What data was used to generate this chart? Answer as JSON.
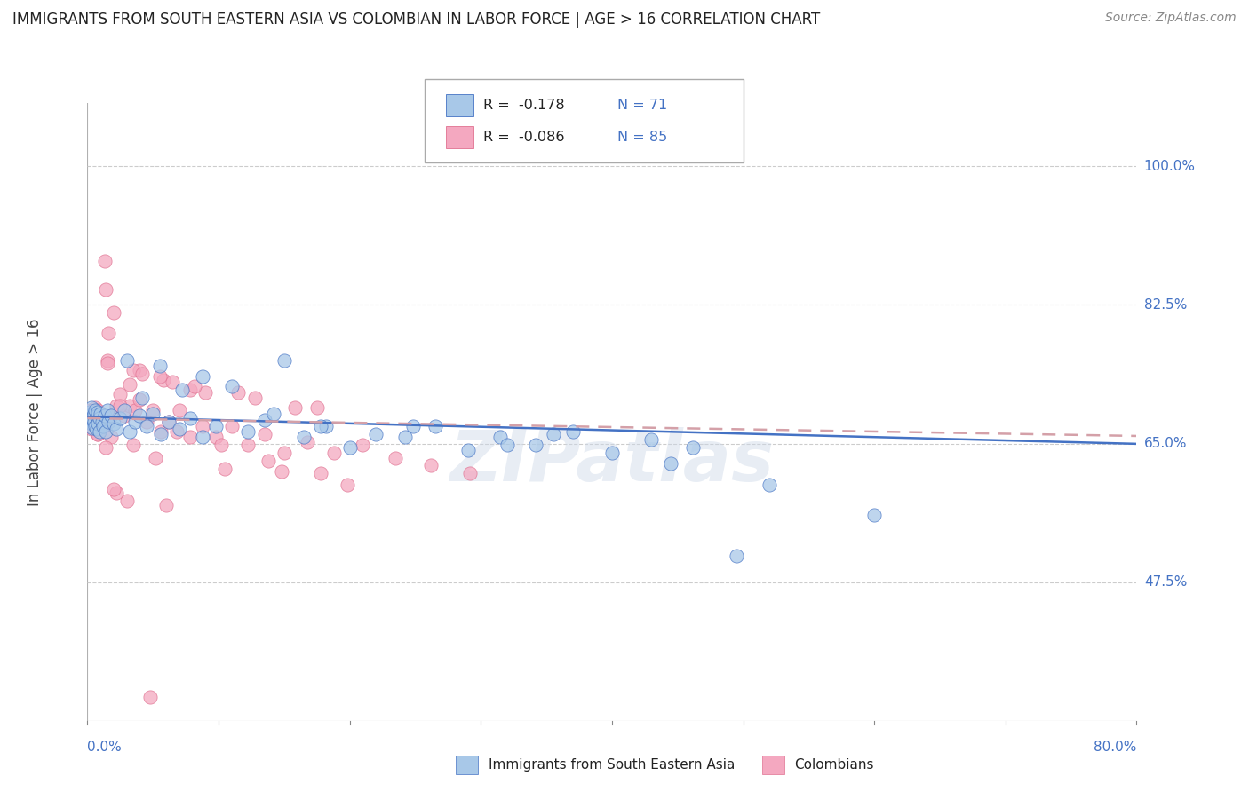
{
  "title": "IMMIGRANTS FROM SOUTH EASTERN ASIA VS COLOMBIAN IN LABOR FORCE | AGE > 16 CORRELATION CHART",
  "source": "Source: ZipAtlas.com",
  "ylabel": "In Labor Force | Age > 16",
  "y_ticks": [
    0.475,
    0.65,
    0.825,
    1.0
  ],
  "y_tick_labels": [
    "47.5%",
    "65.0%",
    "82.5%",
    "100.0%"
  ],
  "x_range": [
    0.0,
    0.8
  ],
  "y_range": [
    0.3,
    1.08
  ],
  "legend_r1": "R =  -0.178",
  "legend_n1": "N = 71",
  "legend_r2": "R =  -0.086",
  "legend_n2": "N = 85",
  "color_blue": "#a8c8e8",
  "color_pink": "#f4a8c0",
  "color_text_blue": "#4472c4",
  "color_text_pink": "#e07090",
  "blue_x": [
    0.001,
    0.002,
    0.002,
    0.003,
    0.003,
    0.004,
    0.004,
    0.005,
    0.005,
    0.006,
    0.006,
    0.007,
    0.007,
    0.008,
    0.008,
    0.009,
    0.009,
    0.01,
    0.011,
    0.012,
    0.013,
    0.014,
    0.015,
    0.016,
    0.018,
    0.02,
    0.022,
    0.025,
    0.028,
    0.032,
    0.036,
    0.04,
    0.045,
    0.05,
    0.056,
    0.062,
    0.07,
    0.078,
    0.088,
    0.098,
    0.11,
    0.122,
    0.135,
    0.15,
    0.165,
    0.182,
    0.2,
    0.22,
    0.242,
    0.265,
    0.29,
    0.315,
    0.342,
    0.37,
    0.4,
    0.43,
    0.462,
    0.495,
    0.32,
    0.178,
    0.088,
    0.055,
    0.042,
    0.03,
    0.6,
    0.445,
    0.52,
    0.355,
    0.248,
    0.142,
    0.072
  ],
  "blue_y": [
    0.68,
    0.685,
    0.69,
    0.675,
    0.695,
    0.682,
    0.67,
    0.688,
    0.678,
    0.692,
    0.672,
    0.685,
    0.668,
    0.69,
    0.675,
    0.682,
    0.665,
    0.688,
    0.678,
    0.672,
    0.685,
    0.665,
    0.692,
    0.678,
    0.685,
    0.675,
    0.668,
    0.682,
    0.692,
    0.665,
    0.678,
    0.685,
    0.672,
    0.688,
    0.662,
    0.678,
    0.668,
    0.682,
    0.658,
    0.672,
    0.722,
    0.665,
    0.68,
    0.755,
    0.658,
    0.672,
    0.645,
    0.662,
    0.658,
    0.672,
    0.642,
    0.658,
    0.648,
    0.665,
    0.638,
    0.655,
    0.645,
    0.508,
    0.648,
    0.672,
    0.735,
    0.748,
    0.708,
    0.755,
    0.56,
    0.625,
    0.598,
    0.662,
    0.672,
    0.688,
    0.718
  ],
  "pink_x": [
    0.001,
    0.001,
    0.002,
    0.002,
    0.003,
    0.003,
    0.004,
    0.004,
    0.005,
    0.005,
    0.006,
    0.006,
    0.007,
    0.007,
    0.008,
    0.008,
    0.009,
    0.01,
    0.011,
    0.012,
    0.013,
    0.014,
    0.015,
    0.016,
    0.018,
    0.02,
    0.022,
    0.025,
    0.028,
    0.032,
    0.036,
    0.04,
    0.045,
    0.05,
    0.056,
    0.062,
    0.07,
    0.078,
    0.088,
    0.098,
    0.11,
    0.122,
    0.135,
    0.15,
    0.168,
    0.188,
    0.21,
    0.235,
    0.262,
    0.292,
    0.03,
    0.052,
    0.035,
    0.018,
    0.008,
    0.014,
    0.022,
    0.06,
    0.105,
    0.148,
    0.198,
    0.058,
    0.078,
    0.04,
    0.025,
    0.012,
    0.09,
    0.035,
    0.065,
    0.115,
    0.158,
    0.042,
    0.015,
    0.175,
    0.128,
    0.082,
    0.055,
    0.032,
    0.008,
    0.02,
    0.048,
    0.068,
    0.102,
    0.138,
    0.178
  ],
  "pink_y": [
    0.678,
    0.688,
    0.672,
    0.692,
    0.682,
    0.668,
    0.685,
    0.675,
    0.69,
    0.678,
    0.695,
    0.672,
    0.688,
    0.668,
    0.692,
    0.678,
    0.682,
    0.668,
    0.685,
    0.672,
    0.88,
    0.845,
    0.755,
    0.79,
    0.685,
    0.815,
    0.698,
    0.712,
    0.685,
    0.698,
    0.692,
    0.705,
    0.678,
    0.692,
    0.665,
    0.678,
    0.692,
    0.658,
    0.672,
    0.658,
    0.672,
    0.648,
    0.662,
    0.638,
    0.652,
    0.638,
    0.648,
    0.632,
    0.622,
    0.612,
    0.578,
    0.632,
    0.648,
    0.658,
    0.662,
    0.645,
    0.588,
    0.572,
    0.618,
    0.615,
    0.598,
    0.73,
    0.718,
    0.742,
    0.698,
    0.685,
    0.715,
    0.742,
    0.728,
    0.715,
    0.695,
    0.738,
    0.752,
    0.695,
    0.708,
    0.722,
    0.735,
    0.725,
    0.662,
    0.592,
    0.33,
    0.665,
    0.648,
    0.628,
    0.612
  ]
}
